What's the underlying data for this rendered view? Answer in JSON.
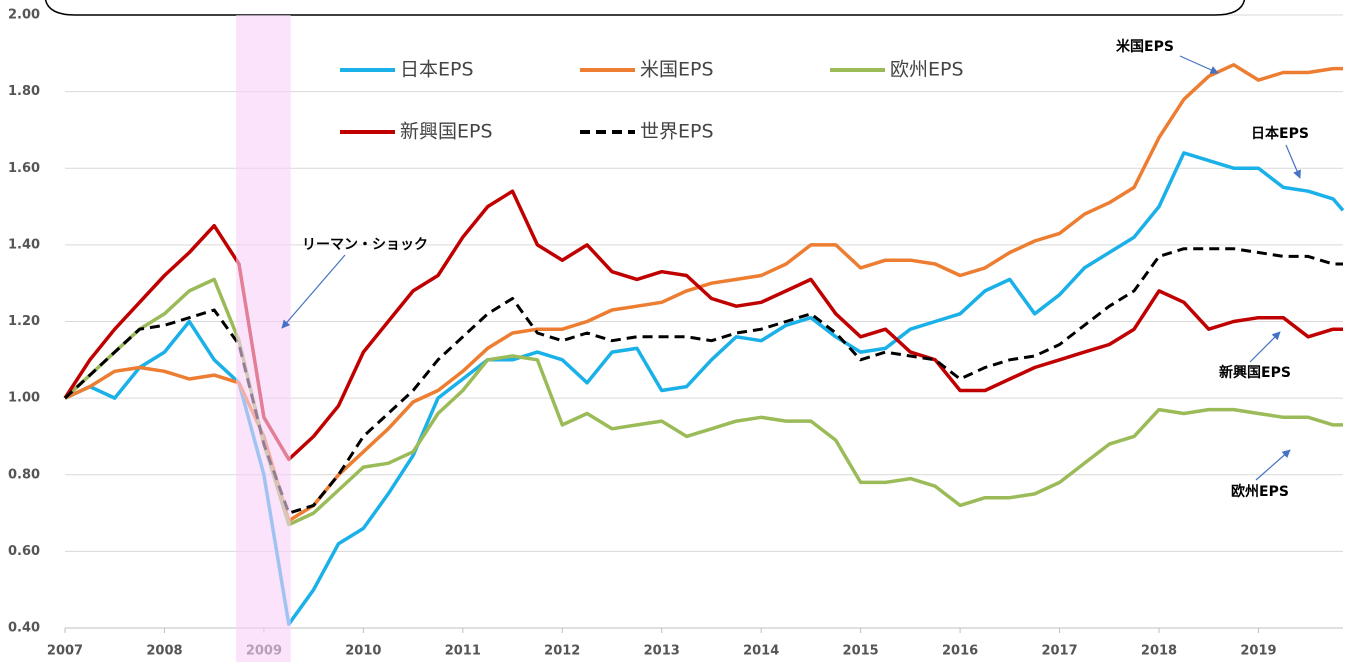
{
  "chart_data": {
    "type": "line",
    "x": [
      2007,
      2007.25,
      2007.5,
      2007.75,
      2008,
      2008.25,
      2008.5,
      2008.75,
      2009,
      2009.25,
      2009.5,
      2009.75,
      2010,
      2010.25,
      2010.5,
      2010.75,
      2011,
      2011.25,
      2011.5,
      2011.75,
      2012,
      2012.25,
      2012.5,
      2012.75,
      2013,
      2013.25,
      2013.5,
      2013.75,
      2014,
      2014.25,
      2014.5,
      2014.75,
      2015,
      2015.25,
      2015.5,
      2015.75,
      2016,
      2016.25,
      2016.5,
      2016.75,
      2017,
      2017.25,
      2017.5,
      2017.75,
      2018,
      2018.25,
      2018.5,
      2018.75,
      2019,
      2019.25,
      2019.5,
      2019.75,
      2019.85
    ],
    "series": [
      {
        "name": "日本EPS",
        "color": "#1ab0e8",
        "values": [
          1.0,
          1.03,
          1.0,
          1.08,
          1.12,
          1.2,
          1.1,
          1.04,
          0.8,
          0.41,
          0.5,
          0.62,
          0.66,
          0.75,
          0.85,
          1.0,
          1.05,
          1.1,
          1.1,
          1.12,
          1.1,
          1.04,
          1.12,
          1.13,
          1.02,
          1.03,
          1.1,
          1.16,
          1.15,
          1.19,
          1.21,
          1.16,
          1.12,
          1.13,
          1.18,
          1.2,
          1.22,
          1.28,
          1.31,
          1.22,
          1.27,
          1.34,
          1.38,
          1.42,
          1.5,
          1.64,
          1.62,
          1.6,
          1.6,
          1.55,
          1.54,
          1.52,
          1.49
        ]
      },
      {
        "name": "米国EPS",
        "color": "#ed7d31",
        "values": [
          1.0,
          1.03,
          1.07,
          1.08,
          1.07,
          1.05,
          1.06,
          1.04,
          0.9,
          0.68,
          0.72,
          0.8,
          0.86,
          0.92,
          0.99,
          1.02,
          1.07,
          1.13,
          1.17,
          1.18,
          1.18,
          1.2,
          1.23,
          1.24,
          1.25,
          1.28,
          1.3,
          1.31,
          1.32,
          1.35,
          1.4,
          1.4,
          1.34,
          1.36,
          1.36,
          1.35,
          1.32,
          1.34,
          1.38,
          1.41,
          1.43,
          1.48,
          1.51,
          1.55,
          1.68,
          1.78,
          1.84,
          1.87,
          1.83,
          1.85,
          1.85,
          1.86,
          1.86
        ]
      },
      {
        "name": "欧州EPS",
        "color": "#9bbb59",
        "values": [
          1.0,
          1.06,
          1.12,
          1.18,
          1.22,
          1.28,
          1.31,
          1.15,
          0.88,
          0.67,
          0.7,
          0.76,
          0.82,
          0.83,
          0.86,
          0.96,
          1.02,
          1.1,
          1.11,
          1.1,
          0.93,
          0.96,
          0.92,
          0.93,
          0.94,
          0.9,
          0.92,
          0.94,
          0.95,
          0.94,
          0.94,
          0.89,
          0.78,
          0.78,
          0.79,
          0.77,
          0.72,
          0.74,
          0.74,
          0.75,
          0.78,
          0.83,
          0.88,
          0.9,
          0.97,
          0.96,
          0.97,
          0.97,
          0.96,
          0.95,
          0.95,
          0.93,
          0.93
        ]
      },
      {
        "name": "新興国EPS",
        "color": "#c00000",
        "values": [
          1.0,
          1.1,
          1.18,
          1.25,
          1.32,
          1.38,
          1.45,
          1.35,
          0.95,
          0.84,
          0.9,
          0.98,
          1.12,
          1.2,
          1.28,
          1.32,
          1.42,
          1.5,
          1.54,
          1.4,
          1.36,
          1.4,
          1.33,
          1.31,
          1.33,
          1.32,
          1.26,
          1.24,
          1.25,
          1.28,
          1.31,
          1.22,
          1.16,
          1.18,
          1.12,
          1.1,
          1.02,
          1.02,
          1.05,
          1.08,
          1.1,
          1.12,
          1.14,
          1.18,
          1.28,
          1.25,
          1.18,
          1.2,
          1.21,
          1.21,
          1.16,
          1.18,
          1.18
        ]
      },
      {
        "name": "世界EPS",
        "color": "#000000",
        "dashed": true,
        "values": [
          1.0,
          1.06,
          1.12,
          1.18,
          1.19,
          1.21,
          1.23,
          1.14,
          0.88,
          0.7,
          0.72,
          0.8,
          0.9,
          0.96,
          1.02,
          1.1,
          1.16,
          1.22,
          1.26,
          1.17,
          1.15,
          1.17,
          1.15,
          1.16,
          1.16,
          1.16,
          1.15,
          1.17,
          1.18,
          1.2,
          1.22,
          1.17,
          1.1,
          1.12,
          1.11,
          1.1,
          1.05,
          1.08,
          1.1,
          1.11,
          1.14,
          1.19,
          1.24,
          1.28,
          1.37,
          1.39,
          1.39,
          1.39,
          1.38,
          1.37,
          1.37,
          1.35,
          1.35
        ]
      }
    ],
    "xlim": [
      2007,
      2019.85
    ],
    "xticks": [
      2007,
      2008,
      2009,
      2010,
      2011,
      2012,
      2013,
      2014,
      2015,
      2016,
      2017,
      2018,
      2019
    ],
    "ylim": [
      0.4,
      2.0
    ],
    "yticks": [
      {
        "value": 0.4,
        "label": "0.40"
      },
      {
        "value": 0.6,
        "label": "0.60"
      },
      {
        "value": 0.8,
        "label": "0.80"
      },
      {
        "value": 1.0,
        "label": "1.00"
      },
      {
        "value": 1.2,
        "label": "1.20"
      },
      {
        "value": 1.4,
        "label": "1.40"
      },
      {
        "value": 1.6,
        "label": "1.60"
      },
      {
        "value": 1.8,
        "label": "1.80"
      },
      {
        "value": 2.0,
        "label": "2.00"
      }
    ],
    "grid": true,
    "shade": {
      "x": [
        2008.72,
        2009.27
      ],
      "color": "#f9d2f9"
    },
    "annotations": [
      "リーマン・ショック",
      "米国EPS",
      "日本EPS",
      "新興国EPS",
      "欧州EPS"
    ]
  }
}
